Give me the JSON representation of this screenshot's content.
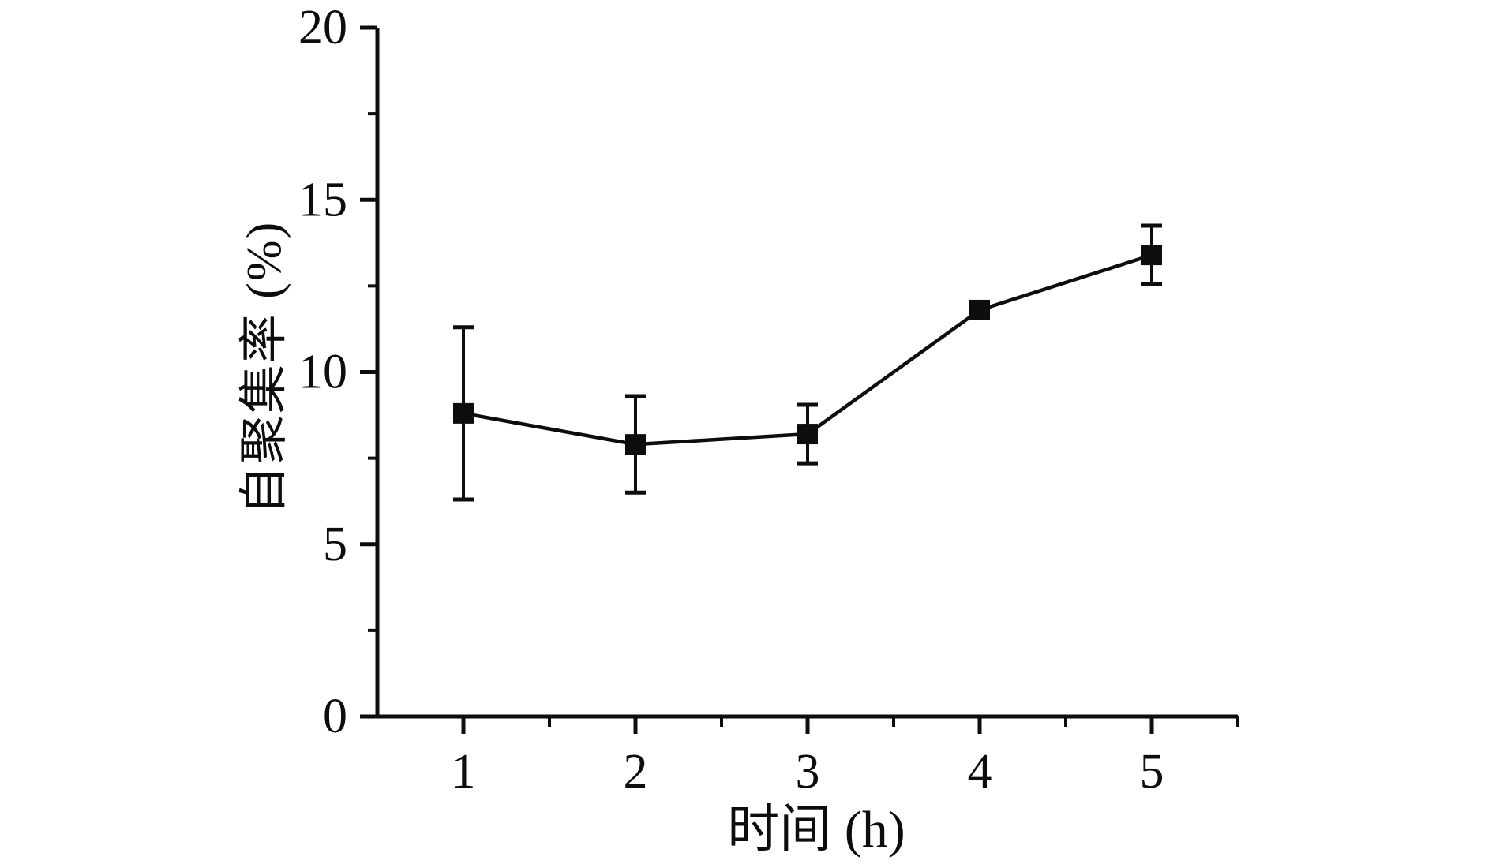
{
  "page": {
    "background_color": "#ffffff",
    "ink_color": "#0d0d0d"
  },
  "chart_data": {
    "type": "line",
    "title": "",
    "xlabel": "时间 (h)",
    "ylabel": "自聚集率 (%)",
    "x": [
      1,
      2,
      3,
      4,
      5
    ],
    "series": [
      {
        "name": "自聚集率",
        "values": [
          8.8,
          7.9,
          8.2,
          11.8,
          13.4
        ],
        "errors": [
          2.5,
          1.4,
          0.85,
          0.1,
          0.85
        ],
        "marker": "filled-square",
        "color": "#0d0d0d"
      }
    ],
    "xlim": [
      0.5,
      5.5
    ],
    "ylim": [
      0,
      20
    ],
    "x_major_ticks": [
      1,
      2,
      3,
      4,
      5
    ],
    "x_minor_ticks": [
      1.5,
      2.5,
      3.5,
      4.5,
      5.5
    ],
    "x_tick_labels": [
      "1",
      "2",
      "3",
      "4",
      "5"
    ],
    "y_major_ticks": [
      0,
      5,
      10,
      15,
      20
    ],
    "y_minor_ticks": [
      2.5,
      7.5,
      12.5,
      17.5
    ],
    "y_tick_labels": [
      "0",
      "5",
      "10",
      "15",
      "20"
    ],
    "grid": false,
    "legend": "none",
    "frame": "left-bottom-only"
  }
}
